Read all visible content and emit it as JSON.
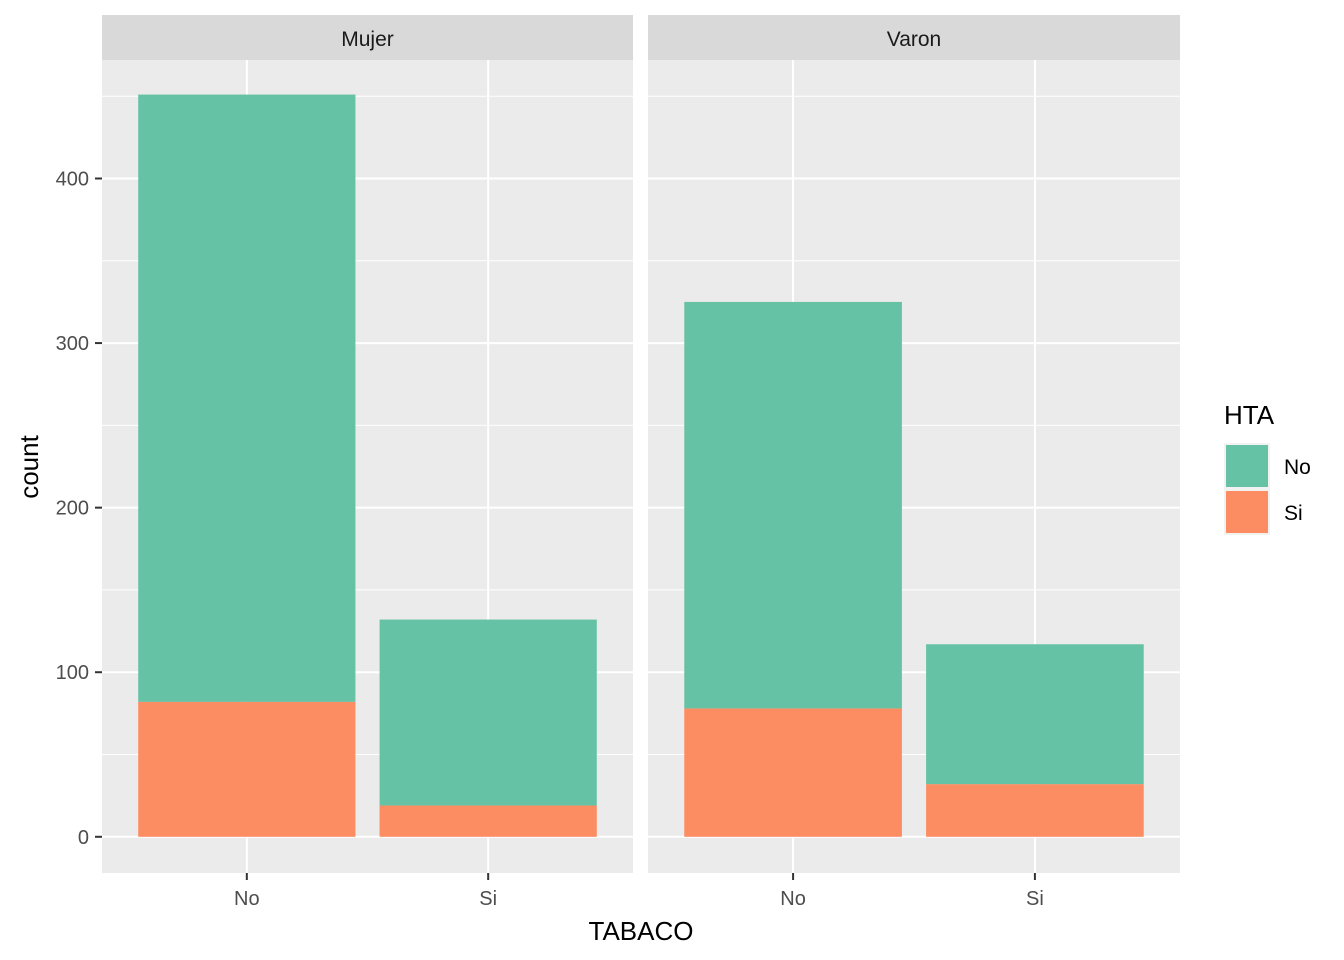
{
  "chart_data": {
    "type": "bar",
    "stacked": true,
    "facet_variable": "SEXO",
    "facets": [
      {
        "label": "Mujer",
        "categories": [
          "No",
          "Si"
        ],
        "series": [
          {
            "name": "No",
            "values": [
              369,
              113
            ]
          },
          {
            "name": "Si",
            "values": [
              82,
              19
            ]
          }
        ]
      },
      {
        "label": "Varon",
        "categories": [
          "No",
          "Si"
        ],
        "series": [
          {
            "name": "No",
            "values": [
              247,
              85
            ]
          },
          {
            "name": "Si",
            "values": [
              78,
              32
            ]
          }
        ]
      }
    ],
    "xlabel": "TABACO",
    "ylabel": "count",
    "ylim": [
      -22,
      472
    ],
    "yticks": [
      0,
      100,
      200,
      300,
      400
    ],
    "grid": true,
    "legend": {
      "title": "HTA",
      "position": "right",
      "entries": [
        {
          "label": "No",
          "color": "#66c2a5"
        },
        {
          "label": "Si",
          "color": "#fc8d62"
        }
      ]
    },
    "colors": {
      "No": "#66c2a5",
      "Si": "#fc8d62",
      "panel_bg": "#ebebeb",
      "strip_bg": "#d9d9d9",
      "grid": "#ffffff"
    }
  }
}
